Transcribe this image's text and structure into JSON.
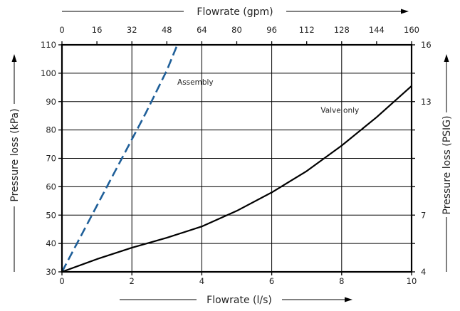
{
  "chart_data": {
    "type": "line",
    "xlabel": "Flowrate (l/s)",
    "x2label": "Flowrate (gpm)",
    "ylabel": "Pressure loss (kPa)",
    "y2label": "Pressure loss (PSIG)",
    "xlim": [
      0,
      10
    ],
    "ylim": [
      30,
      110
    ],
    "x2lim": [
      0,
      160
    ],
    "y2lim": [
      4,
      16
    ],
    "x_ticks": [
      "0",
      "2",
      "4",
      "6",
      "8",
      "10"
    ],
    "x2_ticks": [
      "0",
      "16",
      "32",
      "48",
      "64",
      "80",
      "96",
      "112",
      "128",
      "144",
      "160"
    ],
    "y_ticks": [
      "30",
      "40",
      "50",
      "60",
      "70",
      "80",
      "90",
      "100",
      "110"
    ],
    "y2_ticks": [
      "4",
      "7",
      "13",
      "16"
    ],
    "grid": true,
    "series": [
      {
        "name": "Assembly",
        "color": "#1f5f99",
        "dash": "dashed",
        "x": [
          0,
          0.6,
          1.2,
          1.8,
          2.4,
          3.0,
          3.3
        ],
        "y": [
          30,
          44,
          58,
          72,
          86,
          101,
          110
        ]
      },
      {
        "name": "Valve only",
        "color": "#000000",
        "dash": "solid",
        "x": [
          0,
          1,
          2,
          3,
          4,
          5,
          6,
          7,
          8,
          9,
          10
        ],
        "y": [
          30,
          34.5,
          38.5,
          42,
          46,
          51.5,
          58,
          65.5,
          74.5,
          84.5,
          95.5
        ]
      }
    ],
    "annotations": [
      {
        "text": "Assembly",
        "x": 3.3,
        "y": 96
      },
      {
        "text": "Valve only",
        "x": 7.4,
        "y": 86
      }
    ]
  }
}
